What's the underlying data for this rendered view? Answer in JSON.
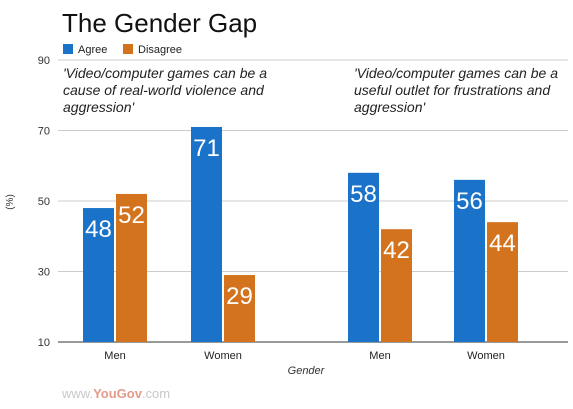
{
  "chart_data": {
    "type": "bar",
    "title": "The Gender Gap",
    "xlabel": "Gender",
    "ylabel": "(%)",
    "ylim": [
      10,
      90
    ],
    "yticks": [
      10,
      30,
      50,
      70,
      90
    ],
    "grid": true,
    "legend_position": "top-left",
    "series": [
      {
        "name": "Agree",
        "color": "#1a73c8"
      },
      {
        "name": "Disagree",
        "color": "#d4731e"
      }
    ],
    "groups": [
      {
        "caption": "'Video/computer games can be a cause of real-world violence and aggression'",
        "caption_lines": [
          "'Video/computer games can be a",
          "cause of real-world violence and",
          "aggression'"
        ],
        "categories": [
          "Men",
          "Women"
        ],
        "values": {
          "Agree": [
            48,
            71
          ],
          "Disagree": [
            52,
            29
          ]
        }
      },
      {
        "caption": "'Video/computer games can be a useful outlet for frustrations and aggression'",
        "caption_lines": [
          "'Video/computer games can be a",
          "useful outlet for frustrations and",
          "aggression'"
        ],
        "categories": [
          "Men",
          "Women"
        ],
        "values": {
          "Agree": [
            58,
            56
          ],
          "Disagree": [
            42,
            44
          ]
        }
      }
    ]
  },
  "footer": {
    "prefix": "www.",
    "brand": "YouGov",
    "suffix": ".com"
  }
}
